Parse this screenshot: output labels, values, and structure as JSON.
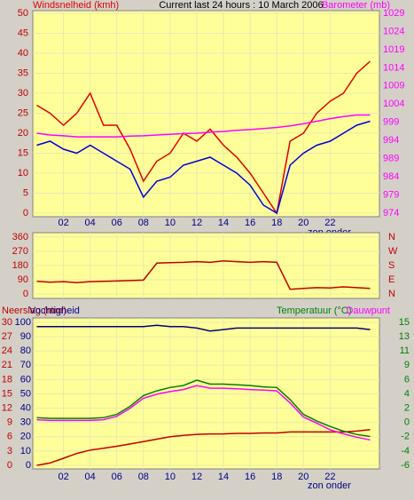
{
  "chart_data": [
    {
      "type": "line",
      "title": "Current last 24 hours : 10 March 2006",
      "x": [
        0,
        1,
        2,
        3,
        4,
        5,
        6,
        7,
        8,
        9,
        10,
        11,
        12,
        13,
        14,
        15,
        16,
        17,
        18,
        19,
        20,
        21,
        22,
        23,
        24,
        25
      ],
      "xlim": [
        -0.3,
        25.7
      ],
      "xticks": [
        {
          "value": 2,
          "label": "02"
        },
        {
          "value": 4,
          "label": "04"
        },
        {
          "value": 6,
          "label": "06"
        },
        {
          "value": 8,
          "label": "08"
        },
        {
          "value": 10,
          "label": "10"
        },
        {
          "value": 12,
          "label": "12"
        },
        {
          "value": 14,
          "label": "14"
        },
        {
          "value": 16,
          "label": "16"
        },
        {
          "value": 18,
          "label": "18"
        },
        {
          "value": 20,
          "label": "20"
        },
        {
          "value": 22,
          "label": "22"
        }
      ],
      "ylim": [
        0,
        50
      ],
      "yticks": [
        0,
        5,
        10,
        15,
        20,
        25,
        30,
        35,
        40,
        45,
        50
      ],
      "y2lim": [
        974,
        1029
      ],
      "y2ticks": [
        974,
        979,
        984,
        989,
        994,
        999,
        1004,
        1009,
        1014,
        1019,
        1024,
        1029
      ],
      "grid": true,
      "annotations": [
        "zon onder"
      ],
      "series": [
        {
          "name": "Windsnelheid (kmh)",
          "color": "#e00000",
          "values": [
            27,
            25,
            22,
            25,
            30,
            22,
            22,
            16,
            8,
            13,
            15,
            20,
            18,
            21,
            17,
            14,
            10,
            5,
            0,
            18,
            20,
            25,
            28,
            30,
            35,
            38
          ]
        },
        {
          "color": "#0000e0",
          "values": [
            17,
            18,
            16,
            15,
            17,
            15,
            13,
            11,
            4,
            8,
            9,
            12,
            13,
            14,
            12,
            10,
            7,
            2,
            0,
            12,
            15,
            17,
            18,
            20,
            22,
            23
          ]
        },
        {
          "name": "Barometer (mb)",
          "color": "#ff00ff",
          "axis": "y2",
          "values": [
            996,
            995.5,
            995.3,
            995,
            995,
            995,
            995,
            995.2,
            995.3,
            995.5,
            995.7,
            995.9,
            996,
            996.3,
            996.5,
            996.8,
            997,
            997.3,
            997.6,
            998,
            998.6,
            999.3,
            1000,
            1000.6,
            1001,
            1001
          ]
        }
      ]
    },
    {
      "type": "line",
      "x": [
        0,
        1,
        2,
        3,
        4,
        5,
        6,
        7,
        8,
        9,
        10,
        11,
        12,
        13,
        14,
        15,
        16,
        17,
        18,
        19,
        20,
        21,
        22,
        23,
        24,
        25
      ],
      "xlim": [
        -0.3,
        25.7
      ],
      "ylim": [
        0,
        360
      ],
      "yticks": [
        0,
        90,
        180,
        270,
        360
      ],
      "y2lim": [
        0,
        360
      ],
      "y2ticks": [
        {
          "value": 0,
          "label": "N"
        },
        {
          "value": 90,
          "label": "E"
        },
        {
          "value": 180,
          "label": "S"
        },
        {
          "value": 270,
          "label": "W"
        },
        {
          "value": 360,
          "label": "N"
        }
      ],
      "grid": true,
      "series": [
        {
          "color": "#c00000",
          "values": [
            80,
            75,
            78,
            72,
            78,
            80,
            82,
            85,
            88,
            195,
            198,
            200,
            205,
            200,
            210,
            205,
            200,
            205,
            200,
            30,
            35,
            40,
            38,
            45,
            40,
            35
          ]
        }
      ]
    },
    {
      "type": "line",
      "x": [
        0,
        1,
        2,
        3,
        4,
        5,
        6,
        7,
        8,
        9,
        10,
        11,
        12,
        13,
        14,
        15,
        16,
        17,
        18,
        19,
        20,
        21,
        22,
        23,
        24,
        25
      ],
      "xlim": [
        -0.3,
        25.7
      ],
      "xticks": [
        {
          "value": 2,
          "label": "02"
        },
        {
          "value": 4,
          "label": "04"
        },
        {
          "value": 6,
          "label": "06"
        },
        {
          "value": 8,
          "label": "08"
        },
        {
          "value": 10,
          "label": "10"
        },
        {
          "value": 12,
          "label": "12"
        },
        {
          "value": 14,
          "label": "14"
        },
        {
          "value": 16,
          "label": "16"
        },
        {
          "value": 18,
          "label": "18"
        },
        {
          "value": 20,
          "label": "20"
        },
        {
          "value": 22,
          "label": "22"
        }
      ],
      "ylim": [
        0,
        100
      ],
      "yticks": [
        0,
        10,
        20,
        30,
        40,
        50,
        60,
        70,
        80,
        90,
        100
      ],
      "y3lim": [
        0,
        30
      ],
      "y3ticks": [
        0,
        3,
        6,
        9,
        12,
        15,
        18,
        21,
        24,
        27,
        30
      ],
      "y2lim": [
        -6.3,
        15
      ],
      "y2ticks": [
        {
          "value": -6.3,
          "label": "-6"
        },
        {
          "value": -4.17,
          "label": "-4"
        },
        {
          "value": -2.04,
          "label": "-2"
        },
        {
          "value": 0.09,
          "label": "0"
        },
        {
          "value": 2.22,
          "label": "2"
        },
        {
          "value": 4.35,
          "label": "4"
        },
        {
          "value": 6.48,
          "label": "6"
        },
        {
          "value": 8.61,
          "label": "9"
        },
        {
          "value": 10.74,
          "label": "11"
        },
        {
          "value": 12.87,
          "label": "13"
        },
        {
          "value": 15,
          "label": "15"
        }
      ],
      "grid": true,
      "annotations": [
        "zon onder"
      ],
      "series": [
        {
          "name": "Neerslag (mm)",
          "color": "#c00000",
          "axis": "y3",
          "values": [
            0,
            0.5,
            1.5,
            2.5,
            3.2,
            3.6,
            4,
            4.5,
            5,
            5.5,
            6,
            6.3,
            6.5,
            6.6,
            6.6,
            6.7,
            6.7,
            6.8,
            6.8,
            7,
            7,
            7,
            7,
            7,
            7.2,
            7.5
          ]
        },
        {
          "name": "Vochtigheid",
          "color": "#000080",
          "values": [
            97,
            97,
            97,
            97,
            97,
            97,
            97,
            97,
            97,
            98,
            97,
            97,
            96,
            94,
            95,
            96,
            96,
            96,
            96,
            96,
            96,
            96,
            96,
            96,
            96,
            95
          ]
        },
        {
          "name": "Temperatuur (°C)",
          "color": "#008000",
          "axis": "y2",
          "values": [
            0.8,
            0.7,
            0.7,
            0.7,
            0.7,
            0.8,
            1.3,
            2.5,
            4.1,
            4.8,
            5.3,
            5.6,
            6.4,
            5.8,
            5.8,
            5.7,
            5.6,
            5.4,
            5.3,
            3.5,
            1.3,
            0.3,
            -0.5,
            -1.2,
            -1.7,
            -2
          ]
        },
        {
          "name": "Dauwpunt",
          "color": "#ff00ff",
          "axis": "y2",
          "values": [
            0.5,
            0.4,
            0.4,
            0.4,
            0.4,
            0.5,
            1,
            2.2,
            3.7,
            4.3,
            4.7,
            5,
            5.6,
            5.2,
            5.2,
            5.1,
            5,
            4.9,
            4.8,
            3,
            0.9,
            0,
            -1,
            -1.6,
            -2.1,
            -2.5
          ]
        }
      ]
    }
  ]
}
